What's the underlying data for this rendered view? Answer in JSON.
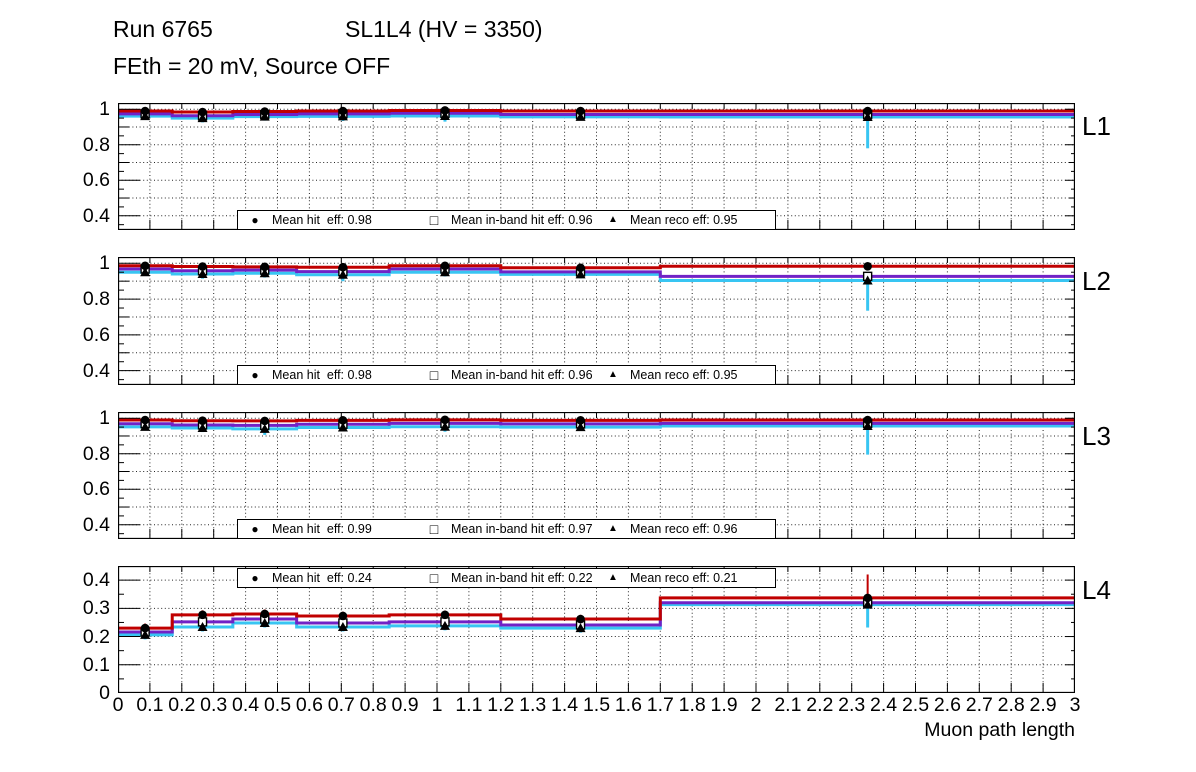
{
  "header": {
    "run": "Run 6765",
    "chamber": "SL1L4 (HV = 3350)",
    "conditions": "FEth = 20 mV, Source OFF"
  },
  "x_axis": {
    "title": "Muon path length",
    "min": 0,
    "max": 3,
    "tick_step": 0.1,
    "tick_labels": [
      "0",
      "0.1",
      "0.2",
      "0.3",
      "0.4",
      "0.5",
      "0.6",
      "0.7",
      "0.8",
      "0.9",
      "1",
      "1.1",
      "1.2",
      "1.3",
      "1.4",
      "1.5",
      "1.6",
      "1.7",
      "1.8",
      "1.9",
      "2",
      "2.1",
      "2.2",
      "2.3",
      "2.4",
      "2.5",
      "2.6",
      "2.7",
      "2.8",
      "2.9",
      "3"
    ]
  },
  "colors": {
    "hit": "#c00000",
    "inband": "#7122c6",
    "reco": "#38c5f2",
    "marker": "#000000",
    "grid": "#000000"
  },
  "chart_data": [
    {
      "label": "L1",
      "type": "line",
      "legend_position": "bottom",
      "means": {
        "hit": 0.98,
        "inband": 0.96,
        "reco": 0.95
      },
      "y_axis": {
        "min": 0.32,
        "max": 1.035,
        "major": [
          0.4,
          0.6,
          0.8,
          1
        ],
        "major_labels": [
          "0.4",
          "0.6",
          "0.8",
          "1"
        ],
        "mid": [
          0.5,
          0.7,
          0.9
        ],
        "minor_step": 0.05,
        "grid": [
          0.4,
          0.5,
          0.6,
          0.7,
          0.8,
          0.9,
          1.0
        ]
      },
      "bin_edges": [
        0,
        0.17,
        0.36,
        0.56,
        0.85,
        1.2,
        1.7,
        3
      ],
      "bin_centers": [
        0.085,
        0.265,
        0.46,
        0.705,
        1.025,
        1.45,
        2.35
      ],
      "series": [
        {
          "name": "hit",
          "marker": "filled-circle",
          "legend": "Mean hit  eff: 0.98",
          "values": [
            0.99,
            0.984,
            0.987,
            0.99,
            0.993,
            0.99,
            0.99
          ],
          "err_low": [
            0.98,
            0.972,
            0.978,
            0.981,
            0.985,
            0.981,
            0.981
          ],
          "err_high": [
            0.998,
            0.994,
            0.996,
            0.998,
            1.0,
            0.998,
            0.998
          ]
        },
        {
          "name": "inband",
          "marker": "open-square",
          "legend": "Mean in-band hit eff: 0.96",
          "values": [
            0.974,
            0.963,
            0.97,
            0.974,
            0.977,
            0.97,
            0.97
          ]
        },
        {
          "name": "reco",
          "marker": "filled-triangle",
          "legend": "Mean reco eff: 0.95",
          "values": [
            0.961,
            0.95,
            0.958,
            0.96,
            0.962,
            0.957,
            0.956
          ],
          "err_low": [
            0.944,
            0.926,
            0.936,
            0.934,
            0.93,
            0.94,
            0.78
          ],
          "err_high": [
            0.969,
            0.958,
            0.966,
            0.968,
            0.97,
            0.965,
            0.964
          ]
        }
      ]
    },
    {
      "label": "L2",
      "type": "line",
      "legend_position": "bottom",
      "means": {
        "hit": 0.98,
        "inband": 0.96,
        "reco": 0.95
      },
      "y_axis": {
        "min": 0.32,
        "max": 1.035,
        "major": [
          0.4,
          0.6,
          0.8,
          1
        ],
        "major_labels": [
          "0.4",
          "0.6",
          "0.8",
          "1"
        ],
        "mid": [
          0.5,
          0.7,
          0.9
        ],
        "minor_step": 0.05,
        "grid": [
          0.4,
          0.5,
          0.6,
          0.7,
          0.8,
          0.9,
          1.0
        ]
      },
      "bin_edges": [
        0,
        0.17,
        0.36,
        0.56,
        0.85,
        1.2,
        1.7,
        3
      ],
      "bin_centers": [
        0.085,
        0.265,
        0.46,
        0.705,
        1.025,
        1.45,
        2.35
      ],
      "series": [
        {
          "name": "hit",
          "marker": "filled-circle",
          "legend": "Mean hit  eff: 0.98",
          "values": [
            0.986,
            0.982,
            0.98,
            0.978,
            0.986,
            0.975,
            0.983
          ],
          "err_low": [
            0.978,
            0.974,
            0.972,
            0.97,
            0.978,
            0.967,
            0.976
          ],
          "err_high": [
            0.994,
            0.99,
            0.988,
            0.986,
            0.994,
            0.983,
            0.99
          ]
        },
        {
          "name": "inband",
          "marker": "open-square",
          "legend": "Mean in-band hit eff: 0.96",
          "values": [
            0.968,
            0.958,
            0.962,
            0.953,
            0.968,
            0.952,
            0.927
          ]
        },
        {
          "name": "reco",
          "marker": "filled-triangle",
          "legend": "Mean reco eff: 0.95",
          "values": [
            0.95,
            0.94,
            0.944,
            0.936,
            0.95,
            0.938,
            0.904
          ],
          "err_low": [
            0.93,
            0.914,
            0.92,
            0.9,
            0.926,
            0.916,
            0.735
          ],
          "err_high": [
            0.958,
            0.948,
            0.952,
            0.944,
            0.958,
            0.946,
            0.912
          ]
        }
      ]
    },
    {
      "label": "L3",
      "type": "line",
      "legend_position": "bottom",
      "means": {
        "hit": 0.99,
        "inband": 0.97,
        "reco": 0.96
      },
      "y_axis": {
        "min": 0.32,
        "max": 1.035,
        "major": [
          0.4,
          0.6,
          0.8,
          1
        ],
        "major_labels": [
          "0.4",
          "0.6",
          "0.8",
          "1"
        ],
        "mid": [
          0.5,
          0.7,
          0.9
        ],
        "minor_step": 0.05,
        "grid": [
          0.4,
          0.5,
          0.6,
          0.7,
          0.8,
          0.9,
          1.0
        ]
      },
      "bin_edges": [
        0,
        0.17,
        0.36,
        0.56,
        0.85,
        1.2,
        1.7,
        3
      ],
      "bin_centers": [
        0.085,
        0.265,
        0.46,
        0.705,
        1.025,
        1.45,
        2.35
      ],
      "series": [
        {
          "name": "hit",
          "marker": "filled-circle",
          "legend": "Mean hit  eff: 0.99",
          "values": [
            0.99,
            0.986,
            0.985,
            0.988,
            0.991,
            0.988,
            0.99
          ],
          "err_low": [
            0.982,
            0.978,
            0.977,
            0.98,
            0.983,
            0.98,
            0.982
          ],
          "err_high": [
            0.998,
            0.994,
            0.993,
            0.996,
            0.999,
            0.996,
            0.998
          ]
        },
        {
          "name": "inband",
          "marker": "open-square",
          "legend": "Mean in-band hit eff: 0.97",
          "values": [
            0.969,
            0.962,
            0.96,
            0.966,
            0.971,
            0.968,
            0.971
          ]
        },
        {
          "name": "reco",
          "marker": "filled-triangle",
          "legend": "Mean reco eff: 0.96",
          "values": [
            0.951,
            0.945,
            0.94,
            0.948,
            0.952,
            0.95,
            0.956
          ],
          "err_low": [
            0.934,
            0.922,
            0.906,
            0.93,
            0.924,
            0.934,
            0.795
          ],
          "err_high": [
            0.959,
            0.953,
            0.948,
            0.956,
            0.96,
            0.958,
            0.964
          ]
        }
      ]
    },
    {
      "label": "L4",
      "type": "line",
      "legend_position": "top",
      "means": {
        "hit": 0.24,
        "inband": 0.22,
        "reco": 0.21
      },
      "y_axis": {
        "min": 0,
        "max": 0.45,
        "major": [
          0,
          0.1,
          0.2,
          0.3,
          0.4
        ],
        "major_labels": [
          "0",
          "0.1",
          "0.2",
          "0.3",
          "0.4"
        ],
        "mid": [],
        "minor_step": 0.05,
        "grid": [
          0.1,
          0.2,
          0.3,
          0.4
        ]
      },
      "bin_edges": [
        0,
        0.17,
        0.36,
        0.56,
        0.85,
        1.2,
        1.7,
        3
      ],
      "bin_centers": [
        0.085,
        0.265,
        0.46,
        0.705,
        1.025,
        1.45,
        2.35
      ],
      "series": [
        {
          "name": "hit",
          "marker": "filled-circle",
          "legend": "Mean hit  eff: 0.24",
          "values": [
            0.23,
            0.277,
            0.28,
            0.273,
            0.277,
            0.262,
            0.337
          ],
          "err_low": [
            0.214,
            0.261,
            0.264,
            0.258,
            0.262,
            0.247,
            0.322
          ],
          "err_high": [
            0.246,
            0.293,
            0.296,
            0.288,
            0.292,
            0.277,
            0.42
          ]
        },
        {
          "name": "inband",
          "marker": "open-square",
          "legend": "Mean in-band hit eff: 0.22",
          "values": [
            0.216,
            0.252,
            0.262,
            0.248,
            0.252,
            0.241,
            0.32
          ]
        },
        {
          "name": "reco",
          "marker": "filled-triangle",
          "legend": "Mean reco eff: 0.21",
          "values": [
            0.206,
            0.234,
            0.248,
            0.234,
            0.238,
            0.23,
            0.313
          ],
          "err_low": [
            0.19,
            0.218,
            0.232,
            0.218,
            0.222,
            0.214,
            0.232
          ],
          "err_high": [
            0.22,
            0.248,
            0.262,
            0.248,
            0.252,
            0.244,
            0.325
          ]
        }
      ]
    }
  ]
}
